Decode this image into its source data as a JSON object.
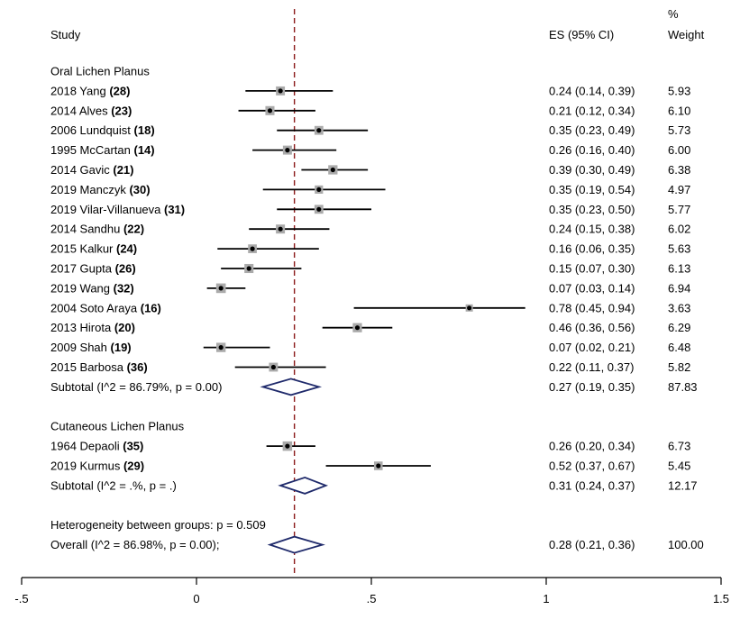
{
  "header": {
    "study": "Study",
    "es": "ES (95% CI)",
    "weight_line1": "%",
    "weight_line2": "Weight"
  },
  "chart_data": {
    "type": "forest",
    "x_ticks": [
      {
        "value": -0.5,
        "label": "-.5"
      },
      {
        "value": 0,
        "label": "0"
      },
      {
        "value": 0.5,
        "label": ".5"
      },
      {
        "value": 1,
        "label": "1"
      },
      {
        "value": 1.5,
        "label": "1.5"
      }
    ],
    "xlim": [
      -0.5,
      1.5
    ],
    "reference_line": 0.28,
    "groups": [
      {
        "title": "Oral Lichen Planus",
        "studies": [
          {
            "name": "2018 Yang",
            "ref": "(28)",
            "es": 0.24,
            "lo": 0.14,
            "hi": 0.39,
            "es_text": "0.24 (0.14, 0.39)",
            "weight": "5.93"
          },
          {
            "name": "2014 Alves",
            "ref": "(23)",
            "es": 0.21,
            "lo": 0.12,
            "hi": 0.34,
            "es_text": "0.21 (0.12, 0.34)",
            "weight": "6.10"
          },
          {
            "name": "2006 Lundquist",
            "ref": "(18)",
            "es": 0.35,
            "lo": 0.23,
            "hi": 0.49,
            "es_text": "0.35 (0.23, 0.49)",
            "weight": "5.73"
          },
          {
            "name": "1995 McCartan",
            "ref": "(14)",
            "es": 0.26,
            "lo": 0.16,
            "hi": 0.4,
            "es_text": "0.26 (0.16, 0.40)",
            "weight": "6.00"
          },
          {
            "name": "2014 Gavic",
            "ref": "(21)",
            "es": 0.39,
            "lo": 0.3,
            "hi": 0.49,
            "es_text": "0.39 (0.30, 0.49)",
            "weight": "6.38"
          },
          {
            "name": "2019 Manczyk",
            "ref": "(30)",
            "es": 0.35,
            "lo": 0.19,
            "hi": 0.54,
            "es_text": "0.35 (0.19, 0.54)",
            "weight": "4.97"
          },
          {
            "name": "2019 Vilar-Villanueva",
            "ref": "(31)",
            "es": 0.35,
            "lo": 0.23,
            "hi": 0.5,
            "es_text": "0.35 (0.23, 0.50)",
            "weight": "5.77"
          },
          {
            "name": "2014 Sandhu",
            "ref": "(22)",
            "es": 0.24,
            "lo": 0.15,
            "hi": 0.38,
            "es_text": "0.24 (0.15, 0.38)",
            "weight": "6.02"
          },
          {
            "name": "2015 Kalkur",
            "ref": "(24)",
            "es": 0.16,
            "lo": 0.06,
            "hi": 0.35,
            "es_text": "0.16 (0.06, 0.35)",
            "weight": "5.63"
          },
          {
            "name": "2017 Gupta",
            "ref": "(26)",
            "es": 0.15,
            "lo": 0.07,
            "hi": 0.3,
            "es_text": "0.15 (0.07, 0.30)",
            "weight": "6.13"
          },
          {
            "name": "2019 Wang",
            "ref": "(32)",
            "es": 0.07,
            "lo": 0.03,
            "hi": 0.14,
            "es_text": "0.07 (0.03, 0.14)",
            "weight": "6.94"
          },
          {
            "name": "2004 Soto Araya",
            "ref": "(16)",
            "es": 0.78,
            "lo": 0.45,
            "hi": 0.94,
            "es_text": "0.78 (0.45, 0.94)",
            "weight": "3.63"
          },
          {
            "name": "2013 Hirota",
            "ref": "(20)",
            "es": 0.46,
            "lo": 0.36,
            "hi": 0.56,
            "es_text": "0.46 (0.36, 0.56)",
            "weight": "6.29"
          },
          {
            "name": "2009 Shah",
            "ref": "(19)",
            "es": 0.07,
            "lo": 0.02,
            "hi": 0.21,
            "es_text": "0.07 (0.02, 0.21)",
            "weight": "6.48"
          },
          {
            "name": "2015 Barbosa",
            "ref": "(36)",
            "es": 0.22,
            "lo": 0.11,
            "hi": 0.37,
            "es_text": "0.22 (0.11, 0.37)",
            "weight": "5.82"
          }
        ],
        "subtotal": {
          "label": "Subtotal  (I^2 = 86.79%, p = 0.00)",
          "es": 0.27,
          "lo": 0.19,
          "hi": 0.35,
          "es_text": "0.27 (0.19, 0.35)",
          "weight": "87.83"
        }
      },
      {
        "title": "Cutaneous Lichen Planus",
        "studies": [
          {
            "name": "1964 Depaoli",
            "ref": "(35)",
            "es": 0.26,
            "lo": 0.2,
            "hi": 0.34,
            "es_text": "0.26 (0.20, 0.34)",
            "weight": "6.73"
          },
          {
            "name": "2019 Kurmus",
            "ref": "(29)",
            "es": 0.52,
            "lo": 0.37,
            "hi": 0.67,
            "es_text": "0.52 (0.37, 0.67)",
            "weight": "5.45"
          }
        ],
        "subtotal": {
          "label": "Subtotal  (I^2 = .%, p = .)",
          "es": 0.31,
          "lo": 0.24,
          "hi": 0.37,
          "es_text": "0.31 (0.24, 0.37)",
          "weight": "12.17"
        }
      }
    ],
    "heterogeneity": "Heterogeneity between groups: p = 0.509",
    "overall": {
      "label": "Overall  (I^2 = 86.98%, p = 0.00);",
      "es": 0.28,
      "lo": 0.21,
      "hi": 0.36,
      "es_text": "0.28 (0.21, 0.36)",
      "weight": "100.00"
    }
  }
}
